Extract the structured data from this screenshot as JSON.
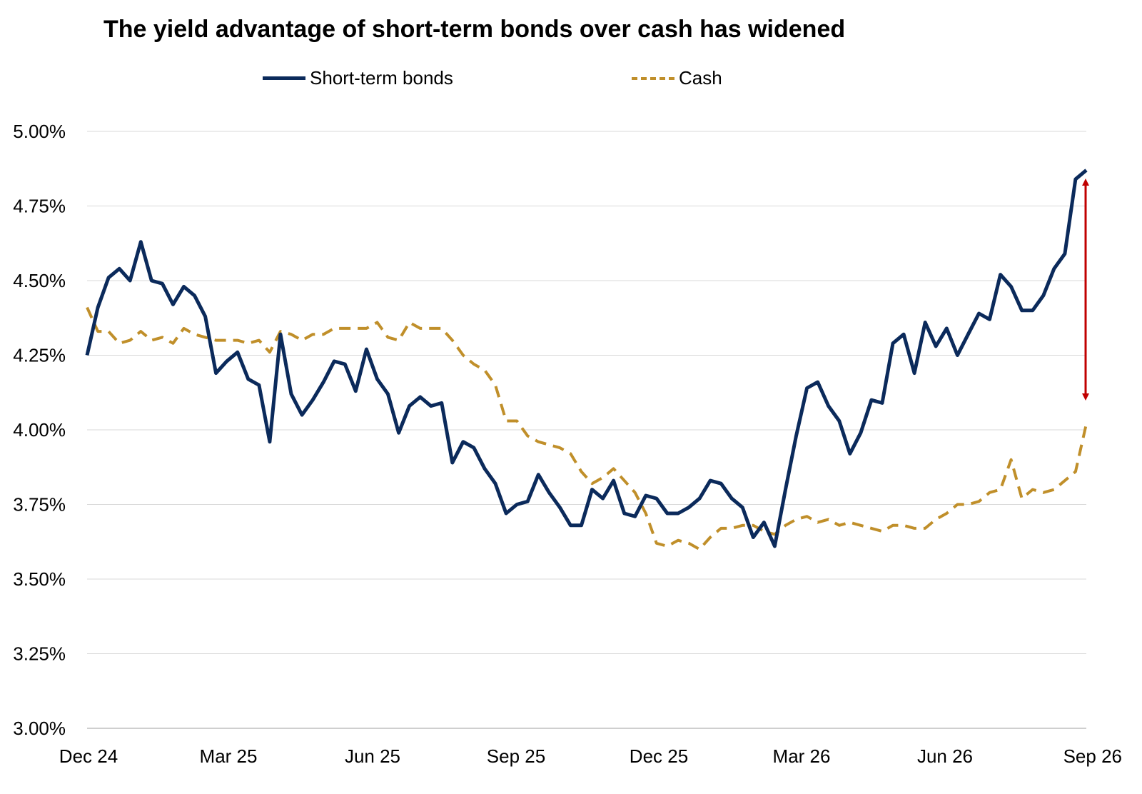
{
  "chart_data": {
    "type": "line",
    "title": "The yield advantage of short-term bonds over cash has widened",
    "xlabel": "",
    "ylabel": "",
    "ylim": [
      3.0,
      5.0
    ],
    "yticks": [
      "3.00%",
      "3.25%",
      "3.50%",
      "3.75%",
      "4.00%",
      "4.25%",
      "4.50%",
      "4.75%",
      "5.00%"
    ],
    "xticks": [
      "Dec 24",
      "Mar 25",
      "Jun 25",
      "Sep 25",
      "Dec 25",
      "Mar 26",
      "Jun 26",
      "Sep 26"
    ],
    "grid": true,
    "legend_position": "top",
    "colors": {
      "bonds": "#0b2a5b",
      "cash": "#c08f2a",
      "arrow": "#c00000"
    },
    "series": [
      {
        "name": "Short-term bonds",
        "style": "solid",
        "values": [
          4.25,
          4.41,
          4.51,
          4.54,
          4.5,
          4.63,
          4.5,
          4.49,
          4.42,
          4.48,
          4.45,
          4.38,
          4.19,
          4.23,
          4.26,
          4.17,
          4.15,
          3.96,
          4.32,
          4.12,
          4.05,
          4.1,
          4.16,
          4.23,
          4.22,
          4.13,
          4.27,
          4.17,
          4.12,
          3.99,
          4.08,
          4.11,
          4.08,
          4.09,
          3.89,
          3.96,
          3.94,
          3.87,
          3.82,
          3.72,
          3.75,
          3.76,
          3.85,
          3.79,
          3.74,
          3.68,
          3.68,
          3.8,
          3.77,
          3.83,
          3.72,
          3.71,
          3.78,
          3.77,
          3.72,
          3.72,
          3.74,
          3.77,
          3.83,
          3.82,
          3.77,
          3.74,
          3.64,
          3.69,
          3.61,
          3.8,
          3.98,
          4.14,
          4.16,
          4.08,
          4.03,
          3.92,
          3.99,
          4.1,
          4.09,
          4.29,
          4.32,
          4.19,
          4.36,
          4.28,
          4.34,
          4.25,
          4.32,
          4.39,
          4.37,
          4.52,
          4.48,
          4.4,
          4.4,
          4.45,
          4.54,
          4.59,
          4.84,
          4.87
        ]
      },
      {
        "name": "Cash",
        "style": "dashed",
        "values": [
          4.41,
          4.33,
          4.33,
          4.29,
          4.3,
          4.33,
          4.3,
          4.31,
          4.29,
          4.34,
          4.32,
          4.31,
          4.3,
          4.3,
          4.3,
          4.29,
          4.3,
          4.26,
          4.33,
          4.32,
          4.3,
          4.32,
          4.32,
          4.34,
          4.34,
          4.34,
          4.34,
          4.36,
          4.31,
          4.3,
          4.36,
          4.34,
          4.34,
          4.34,
          4.3,
          4.25,
          4.22,
          4.2,
          4.15,
          4.03,
          4.03,
          3.98,
          3.96,
          3.95,
          3.94,
          3.92,
          3.86,
          3.82,
          3.84,
          3.87,
          3.83,
          3.79,
          3.72,
          3.62,
          3.61,
          3.63,
          3.62,
          3.6,
          3.64,
          3.67,
          3.67,
          3.68,
          3.68,
          3.66,
          3.65,
          3.68,
          3.7,
          3.71,
          3.69,
          3.7,
          3.68,
          3.69,
          3.68,
          3.67,
          3.66,
          3.68,
          3.68,
          3.67,
          3.67,
          3.7,
          3.72,
          3.75,
          3.75,
          3.76,
          3.79,
          3.8,
          3.9,
          3.77,
          3.8,
          3.79,
          3.8,
          3.83,
          3.86,
          4.02
        ]
      }
    ],
    "annotation": {
      "type": "double-arrow",
      "from": 4.11,
      "to": 4.83
    }
  }
}
